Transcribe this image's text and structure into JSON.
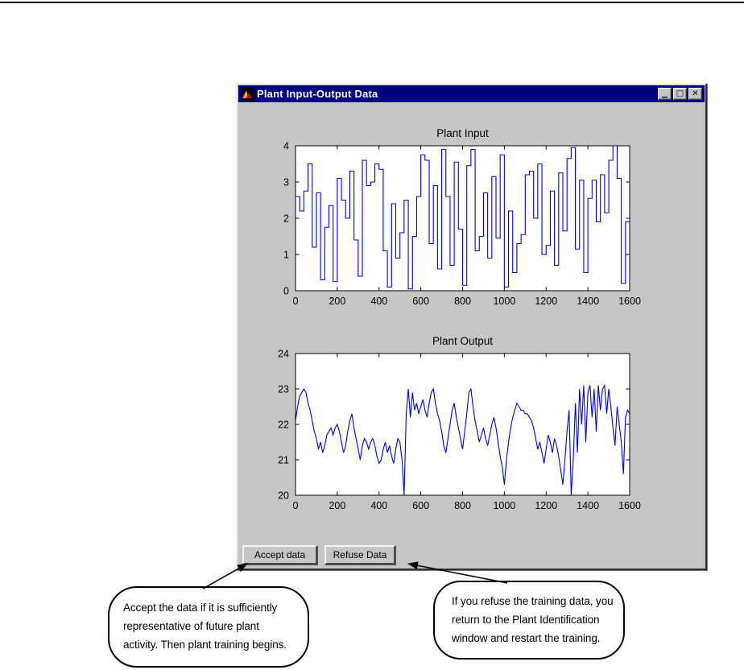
{
  "page": {
    "top_rule_color": "#000000"
  },
  "window": {
    "title": "Plant Input-Output Data",
    "titlebar_color": "#000080",
    "body_color": "#c6c6c6",
    "controls": {
      "minimize_glyph": "▁",
      "maximize_glyph": "□",
      "close_glyph": "✕"
    },
    "buttons": [
      {
        "label": "Accept data"
      },
      {
        "label": "Refuse Data"
      }
    ]
  },
  "chart_data": [
    {
      "type": "line",
      "subtype": "stairs",
      "title": "Plant Input",
      "xlabel": "",
      "ylabel": "",
      "xlim": [
        0,
        1600
      ],
      "ylim": [
        0,
        4
      ],
      "xticks": [
        0,
        200,
        400,
        600,
        800,
        1000,
        1200,
        1400,
        1600
      ],
      "yticks": [
        0,
        1,
        2,
        3,
        4
      ],
      "grid": false,
      "legend": null,
      "line_color": "#0000e0",
      "x_step": 20,
      "values": [
        2.6,
        2.2,
        2.75,
        3.5,
        1.2,
        2.7,
        0.3,
        1.75,
        2.35,
        0.25,
        3.1,
        2.5,
        2.0,
        3.3,
        1.4,
        0.4,
        3.6,
        2.9,
        3.0,
        3.5,
        3.35,
        1.1,
        0.1,
        2.4,
        0.9,
        1.6,
        2.5,
        0.05,
        1.5,
        2.6,
        3.75,
        3.6,
        1.3,
        2.9,
        0.6,
        3.9,
        2.6,
        0.7,
        3.55,
        1.7,
        0.15,
        3.45,
        3.9,
        1.1,
        1.5,
        2.7,
        0.9,
        3.15,
        1.45,
        3.75,
        0.1,
        2.2,
        0.5,
        1.3,
        1.55,
        3.2,
        3.3,
        2.0,
        3.5,
        1.0,
        1.25,
        2.75,
        0.7,
        3.25,
        1.65,
        3.65,
        3.95,
        1.15,
        3.05,
        0.5,
        2.55,
        3.05,
        1.9,
        3.2,
        2.15,
        3.6,
        4.0,
        3.1,
        0.2,
        1.9
      ]
    },
    {
      "type": "line",
      "subtype": "line",
      "title": "Plant Output",
      "xlabel": "",
      "ylabel": "",
      "xlim": [
        0,
        1600
      ],
      "ylim": [
        20,
        24
      ],
      "xticks": [
        0,
        200,
        400,
        600,
        800,
        1000,
        1200,
        1400,
        1600
      ],
      "yticks": [
        20,
        21,
        22,
        23,
        24
      ],
      "grid": false,
      "legend": null,
      "line_color": "#0000e0",
      "x_step": 10,
      "values": [
        22.1,
        22.5,
        22.8,
        22.9,
        23.0,
        22.9,
        22.6,
        22.4,
        22.1,
        21.8,
        21.6,
        21.3,
        21.5,
        21.2,
        21.4,
        21.7,
        21.8,
        21.9,
        21.7,
        21.9,
        22.0,
        21.8,
        21.5,
        21.2,
        21.4,
        21.8,
        22.1,
        22.3,
        21.9,
        21.6,
        21.3,
        21.0,
        21.4,
        21.6,
        21.5,
        21.3,
        21.5,
        21.6,
        21.4,
        21.1,
        20.9,
        21.0,
        21.3,
        21.5,
        21.2,
        21.4,
        21.1,
        20.9,
        21.3,
        21.6,
        21.5,
        21.0,
        20.0,
        22.3,
        23.0,
        22.2,
        22.9,
        22.4,
        22.6,
        22.3,
        22.5,
        22.7,
        22.4,
        22.2,
        22.6,
        22.9,
        23.0,
        22.6,
        22.3,
        22.1,
        21.8,
        21.4,
        21.2,
        21.6,
        22.0,
        22.4,
        22.6,
        22.2,
        21.9,
        21.6,
        21.3,
        21.8,
        22.3,
        22.9,
        23.0,
        22.5,
        22.1,
        21.8,
        21.5,
        21.7,
        21.9,
        21.6,
        21.4,
        21.7,
        22.0,
        22.2,
        21.9,
        21.5,
        21.1,
        20.8,
        20.3,
        21.0,
        21.5,
        21.9,
        22.2,
        22.4,
        22.6,
        22.5,
        22.4,
        22.4,
        22.3,
        22.3,
        22.2,
        22.1,
        21.9,
        21.6,
        21.3,
        21.5,
        21.2,
        20.9,
        21.3,
        21.7,
        21.5,
        21.2,
        21.6,
        21.4,
        21.1,
        20.7,
        20.3,
        21.0,
        21.8,
        22.4,
        20.0,
        21.0,
        22.6,
        21.2,
        23.0,
        22.0,
        23.1,
        21.5,
        22.9,
        23.1,
        22.2,
        23.0,
        21.8,
        23.1,
        22.4,
        23.0,
        23.1,
        22.3,
        23.0,
        22.5,
        21.9,
        21.4,
        22.5,
        22.0,
        21.5,
        20.6,
        22.2,
        22.4,
        22.3
      ]
    }
  ],
  "callouts": [
    {
      "lines": [
        "Accept the data if it is sufficiently",
        "representative of future plant",
        "activity. Then plant training begins."
      ]
    },
    {
      "lines": [
        "If you refuse the training data, you",
        "return to the Plant Identification",
        "window and restart the training."
      ]
    }
  ]
}
